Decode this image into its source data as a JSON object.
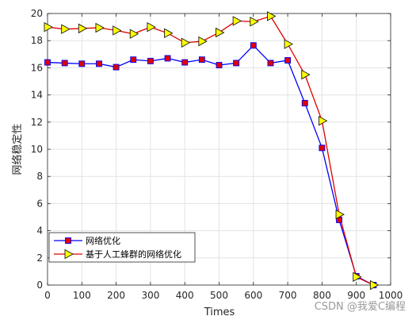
{
  "chart_data": {
    "type": "line",
    "xlabel": "Times",
    "ylabel": "网络稳定性",
    "xlim": [
      0,
      1000
    ],
    "ylim": [
      0,
      20
    ],
    "xticks": [
      0,
      100,
      200,
      300,
      400,
      500,
      600,
      700,
      800,
      900,
      1000
    ],
    "yticks": [
      0,
      2,
      4,
      6,
      8,
      10,
      12,
      14,
      16,
      18,
      20
    ],
    "grid": true,
    "legend_position": "bottom-left",
    "x": [
      0,
      50,
      100,
      150,
      200,
      250,
      300,
      350,
      400,
      450,
      500,
      550,
      600,
      650,
      700,
      750,
      800,
      850,
      900,
      950
    ],
    "series": [
      {
        "name": "网络优化",
        "line_color": "#0000ff",
        "marker": "square",
        "marker_fill": "#e00000",
        "values": [
          16.4,
          16.35,
          16.3,
          16.3,
          16.05,
          16.6,
          16.5,
          16.7,
          16.4,
          16.6,
          16.2,
          16.35,
          17.65,
          16.35,
          16.55,
          13.4,
          10.1,
          4.8,
          0.65,
          0.0
        ]
      },
      {
        "name": "基于人工蜂群的网络优化",
        "line_color": "#e00000",
        "marker": "triangle-right",
        "marker_fill": "#ffff00",
        "values": [
          19.0,
          18.85,
          18.9,
          18.95,
          18.75,
          18.5,
          19.0,
          18.55,
          17.85,
          17.95,
          18.6,
          19.45,
          19.4,
          19.8,
          17.75,
          15.5,
          12.1,
          5.2,
          0.6,
          0.0
        ]
      }
    ]
  },
  "watermark": "CSDN @我爱C编程"
}
